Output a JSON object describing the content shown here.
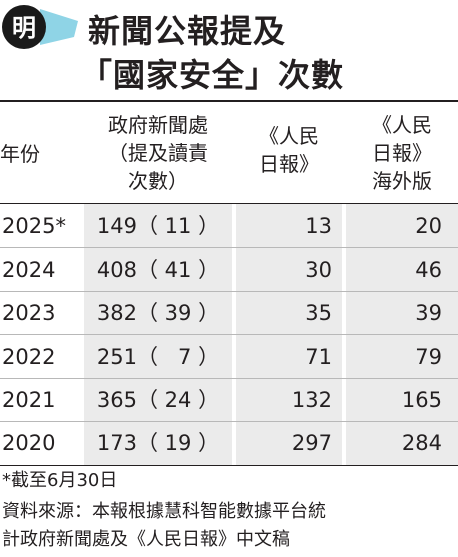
{
  "header": {
    "logo_text": "明",
    "title_line1": "新聞公報提及",
    "title_line2": "「國家安全」次數"
  },
  "colors": {
    "logo_circle": "#1a1a1a",
    "logo_accent": "#8fd4e6",
    "text": "#231f20",
    "column_shade": "#ebebeb"
  },
  "table": {
    "headers": {
      "year": "年份",
      "gov": [
        "政府新聞處",
        "（提及讀責",
        "次數）"
      ],
      "pd": [
        "《人民",
        "日報》"
      ],
      "pdo": [
        "《人民",
        "日報》",
        "海外版"
      ]
    },
    "rows": [
      {
        "year": "2025*",
        "gov": "149（ 11 ）",
        "pd": "13",
        "pdo": "20"
      },
      {
        "year": "2024",
        "gov": "408（ 41 ）",
        "pd": "30",
        "pdo": "46"
      },
      {
        "year": "2023",
        "gov": "382（ 39 ）",
        "pd": "35",
        "pdo": "39"
      },
      {
        "year": "2022",
        "gov": "251（   7 ）",
        "pd": "71",
        "pdo": "79"
      },
      {
        "year": "2021",
        "gov": "365（ 24 ）",
        "pd": "132",
        "pdo": "165"
      },
      {
        "year": "2020",
        "gov": "173（ 19 ）",
        "pd": "297",
        "pdo": "284"
      }
    ]
  },
  "footnote": {
    "line1": "*截至6月30日",
    "line2": "資料來源：本報根據慧科智能數據平台統",
    "line3": "計政府新聞處及《人民日報》中文稿"
  }
}
